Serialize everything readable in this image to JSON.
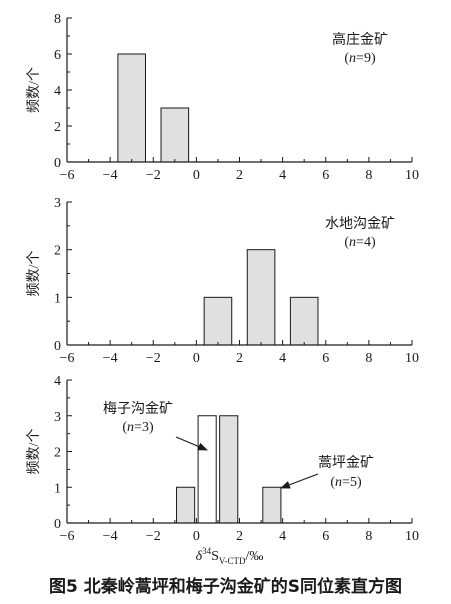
{
  "chart_data": [
    {
      "type": "bar",
      "bin_width": 2,
      "xlim": [
        -6,
        10
      ],
      "ylim": [
        0,
        8
      ],
      "xticks": [
        -6,
        -4,
        -2,
        0,
        2,
        4,
        6,
        8,
        10
      ],
      "yticks": [
        0,
        2,
        4,
        6,
        8
      ],
      "ylabel": "频数/个",
      "xlabel": "",
      "series": [
        {
          "name": "高庄金矿",
          "n_label": "(n=9)",
          "fill": "#e0e0e0",
          "bins": [
            {
              "from": -4,
              "to": -2,
              "value": 6
            },
            {
              "from": -2,
              "to": 0,
              "value": 3
            }
          ]
        }
      ]
    },
    {
      "type": "bar",
      "bin_width": 2,
      "xlim": [
        -6,
        10
      ],
      "ylim": [
        0,
        3
      ],
      "xticks": [
        -6,
        -4,
        -2,
        0,
        2,
        4,
        6,
        8,
        10
      ],
      "yticks": [
        0,
        1,
        2,
        3
      ],
      "ylabel": "频数/个",
      "xlabel": "",
      "series": [
        {
          "name": "水地沟金矿",
          "n_label": "(n=4)",
          "fill": "#e0e0e0",
          "bins": [
            {
              "from": 0,
              "to": 2,
              "value": 1
            },
            {
              "from": 2,
              "to": 4,
              "value": 2
            },
            {
              "from": 4,
              "to": 6,
              "value": 1
            }
          ]
        }
      ]
    },
    {
      "type": "bar",
      "bin_width": 2,
      "xlim": [
        -6,
        10
      ],
      "ylim": [
        0,
        4
      ],
      "xticks": [
        -6,
        -4,
        -2,
        0,
        2,
        4,
        6,
        8,
        10
      ],
      "yticks": [
        0,
        1,
        2,
        3,
        4
      ],
      "ylabel": "频数/个",
      "xlabel": "δ34SV-CTD/‰",
      "series": [
        {
          "name": "梅子沟金矿",
          "n_label": "(n=3)",
          "fill": "#ffffff",
          "bins": [
            {
              "from": 0,
              "to": 1,
              "value": 3
            }
          ]
        },
        {
          "name": "蒿坪金矿",
          "n_label": "(n=5)",
          "fill": "#e0e0e0",
          "bins": [
            {
              "from": -1,
              "to": 0,
              "value": 1
            },
            {
              "from": 1,
              "to": 2,
              "value": 3
            },
            {
              "from": 3,
              "to": 4,
              "value": 1
            }
          ]
        }
      ]
    }
  ],
  "caption": "图5  北秦岭蒿坪和梅子沟金矿的S同位素直方图",
  "colors": {
    "axis": "#1a1a1a",
    "bar_stroke": "#1a1a1a"
  }
}
